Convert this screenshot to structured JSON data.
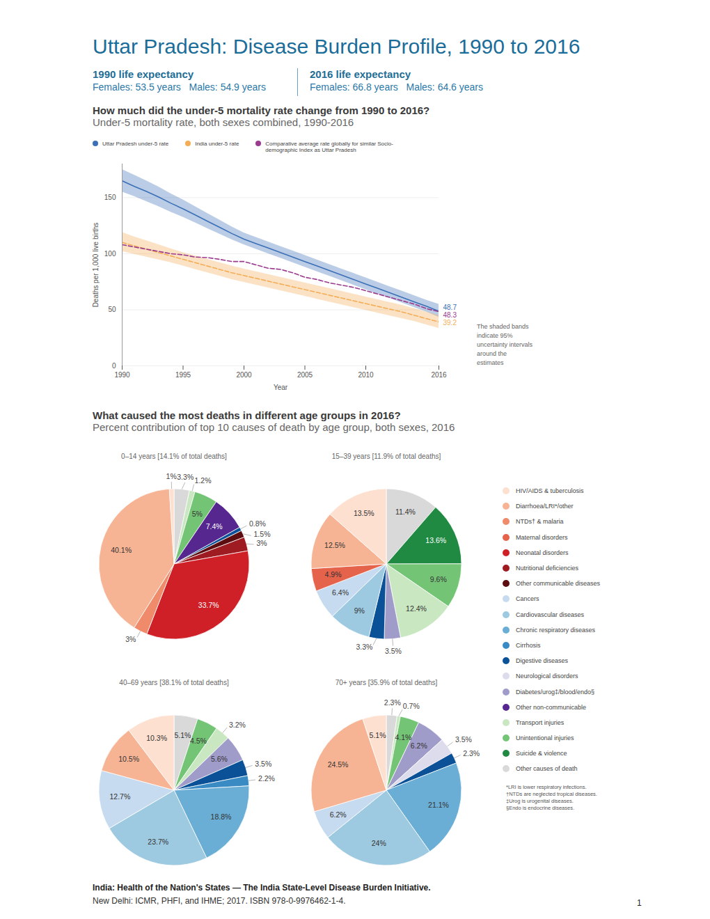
{
  "header": {
    "title": "Uttar Pradesh: Disease Burden Profile, 1990 to 2016",
    "life_expectancy": [
      {
        "heading": "1990 life expectancy",
        "text": "Females: 53.5 years   Males: 54.9 years"
      },
      {
        "heading": "2016 life expectancy",
        "text": "Females: 66.8 years   Males: 64.6 years"
      }
    ]
  },
  "chart_data": [
    {
      "type": "line",
      "title": "How much did the under-5 mortality rate change from 1990 to 2016?",
      "subtitle": "Under-5 mortality rate, both sexes combined, 1990-2016",
      "xlabel": "Year",
      "ylabel": "Deaths per 1,000 live births",
      "x": [
        1990,
        1991,
        1992,
        1993,
        1994,
        1995,
        1996,
        1997,
        1998,
        1999,
        2000,
        2001,
        2002,
        2003,
        2004,
        2005,
        2006,
        2007,
        2008,
        2009,
        2010,
        2011,
        2012,
        2013,
        2014,
        2015,
        2016
      ],
      "series": [
        {
          "name": "Uttar Pradesh under-5 rate",
          "color": "#3b6fb6",
          "line_style": "solid",
          "values": [
            165,
            160,
            155.5,
            150.5,
            145,
            140,
            134.5,
            129,
            123.5,
            118,
            113,
            109,
            105,
            101,
            97,
            93,
            89,
            85,
            81,
            77,
            73,
            69,
            65,
            61,
            57,
            53,
            48.7
          ],
          "lower": [
            155,
            151,
            146.5,
            142,
            137,
            132.5,
            127.5,
            122.5,
            117.5,
            112.5,
            108,
            104,
            100,
            96,
            92,
            88,
            84,
            80,
            76,
            72,
            68,
            64,
            60,
            56,
            52,
            48,
            43.5
          ],
          "upper": [
            175,
            170,
            165,
            159.5,
            153.5,
            148,
            142,
            136,
            130,
            124,
            118.5,
            114.5,
            110.5,
            106.5,
            102.5,
            98.5,
            94.5,
            90.5,
            86.5,
            82.5,
            78.5,
            74.5,
            70.5,
            66.5,
            62.5,
            58.5,
            55
          ]
        },
        {
          "name": "India under-5 rate",
          "color": "#f4ad55",
          "line_style": "dashed",
          "values": [
            110,
            107,
            104,
            101,
            98,
            95,
            92,
            89,
            86,
            83,
            80.5,
            78,
            75.5,
            73,
            70.5,
            68,
            65.5,
            63,
            60.5,
            58,
            55.5,
            53,
            50.5,
            48,
            45,
            42,
            39.2
          ],
          "lower": [
            102,
            99.5,
            97,
            94.5,
            92,
            89,
            86,
            83,
            80,
            77,
            74.5,
            72,
            69.5,
            67,
            64.5,
            62,
            59.5,
            57,
            54.5,
            52,
            49.5,
            47,
            44.5,
            42,
            39.5,
            36.5,
            33.5
          ],
          "upper": [
            119,
            115,
            111.5,
            108,
            104.5,
            101,
            98,
            95,
            92,
            89,
            86.5,
            84,
            81.5,
            79,
            76.5,
            74,
            71.5,
            69,
            66.5,
            64,
            61.5,
            59,
            56.5,
            54,
            51,
            48,
            45
          ]
        },
        {
          "name": "Comparative average rate globally for similar Socio-demographic Index as Uttar Pradesh",
          "color": "#9b3a8e",
          "line_style": "dashed",
          "values": [
            108,
            106,
            104,
            102,
            100,
            99,
            97,
            96.5,
            95,
            93,
            93,
            90,
            87,
            86,
            83,
            79,
            77,
            74,
            72,
            70,
            67,
            64,
            61,
            58,
            55,
            51,
            48.3
          ]
        }
      ],
      "xlim": [
        1990,
        2016
      ],
      "xticks": [
        1990,
        1995,
        2000,
        2005,
        2010,
        2016
      ],
      "ylim": [
        0,
        180
      ],
      "yticks": [
        0,
        50,
        100,
        150
      ],
      "grid": true,
      "annotations": [
        {
          "x": 2016,
          "y": 48.7,
          "text": "48.7",
          "color": "#3b6fb6"
        },
        {
          "x": 2016,
          "y": 48.3,
          "text": "48.3",
          "color": "#9b3a8e"
        },
        {
          "x": 2016,
          "y": 39.2,
          "text": "39.2",
          "color": "#f4ad55"
        }
      ],
      "note": "The shaded bands indicate 95% uncertainty intervals around the estimates"
    },
    {
      "type": "pie",
      "title": "0–14 years [14.1% of total deaths]",
      "categories": [
        "Other causes of death",
        "Transport injuries",
        "Unintentional injuries",
        "Other non-communicable",
        "Digestive diseases",
        "Other communicable diseases",
        "Nutritional deficiencies",
        "Neonatal disorders",
        "NTDs† & malaria",
        "Diarrhoea/LRI*/other",
        "HIV/AIDS & tuberculosis"
      ],
      "values": [
        3.3,
        1.2,
        5,
        7.4,
        0.8,
        1.5,
        3,
        33.7,
        3,
        40.1,
        1
      ],
      "value_labels": [
        "3.3%",
        "1.2%",
        "5%",
        "7.4%",
        "0.8%",
        "1.5%",
        "3%",
        "33.7%",
        "3%",
        "40.1%",
        "1%"
      ],
      "colors": [
        "#d9d9d9",
        "#c9e8c1",
        "#74c476",
        "#55278f",
        "#0b5198",
        "#5c0d10",
        "#9e1b22",
        "#cf2027",
        "#ef8a6a",
        "#f7b494",
        "#fde0d0"
      ],
      "data_labels": true
    },
    {
      "type": "pie",
      "title": "15–39 years [11.9% of total deaths]",
      "categories": [
        "Other causes of death",
        "Suicide & violence",
        "Unintentional injuries",
        "Transport injuries",
        "Diabetes/urog‡/blood/endo§",
        "Digestive diseases",
        "Cardiovascular diseases",
        "Cancers",
        "Maternal disorders",
        "Diarrhoea/LRI*/other",
        "HIV/AIDS & tuberculosis"
      ],
      "values": [
        11.4,
        13.6,
        9.6,
        12.4,
        3.5,
        3.3,
        9,
        6.4,
        4.9,
        12.5,
        13.5
      ],
      "value_labels": [
        "11.4%",
        "13.6%",
        "9.6%",
        "12.4%",
        "3.5%",
        "3.3%",
        "9%",
        "6.4%",
        "4.9%",
        "12.5%",
        "13.5%"
      ],
      "colors": [
        "#d9d9d9",
        "#208a43",
        "#74c476",
        "#c9e8c1",
        "#a09cc9",
        "#0b5198",
        "#9ecae1",
        "#c6dbef",
        "#e5624b",
        "#f7b494",
        "#fde0d0"
      ],
      "data_labels": true
    },
    {
      "type": "pie",
      "title": "40–69 years [38.1% of total deaths]",
      "categories": [
        "Other causes of death",
        "Unintentional injuries",
        "Transport injuries",
        "Diabetes/urog‡/blood/endo§",
        "Digestive diseases",
        "Cirrhosis",
        "Chronic respiratory diseases",
        "Cardiovascular diseases",
        "Cancers",
        "Diarrhoea/LRI*/other",
        "HIV/AIDS & tuberculosis"
      ],
      "values": [
        5.1,
        4.5,
        3.2,
        5.6,
        3.5,
        2.2,
        18.8,
        23.7,
        12.7,
        10.5,
        10.3
      ],
      "value_labels": [
        "5.1%",
        "4.5%",
        "3.2%",
        "5.6%",
        "3.5%",
        "2.2%",
        "18.8%",
        "23.7%",
        "12.7%",
        "10.5%",
        "10.3%"
      ],
      "colors": [
        "#d9d9d9",
        "#74c476",
        "#c9e8c1",
        "#a09cc9",
        "#0b5198",
        "#3a8ac4",
        "#6aaed6",
        "#9ecae1",
        "#c6dbef",
        "#f7b494",
        "#fde0d0"
      ],
      "data_labels": true
    },
    {
      "type": "pie",
      "title": "70+ years [35.9% of total deaths]",
      "categories": [
        "Other causes of death",
        "Transport injuries",
        "Unintentional injuries",
        "Diabetes/urog‡/blood/endo§",
        "Neurological disorders",
        "Digestive diseases",
        "Chronic respiratory diseases",
        "Cardiovascular diseases",
        "Cancers",
        "Diarrhoea/LRI*/other",
        "HIV/AIDS & tuberculosis"
      ],
      "values": [
        2.3,
        0.7,
        4.1,
        6.2,
        3.5,
        2.3,
        21.1,
        24,
        6.2,
        24.5,
        5.1
      ],
      "value_labels": [
        "2.3%",
        "0.7%",
        "4.1%",
        "6.2%",
        "3.5%",
        "2.3%",
        "21.1%",
        "24%",
        "6.2%",
        "24.5%",
        "5.1%"
      ],
      "colors": [
        "#d9d9d9",
        "#c9e8c1",
        "#74c476",
        "#a09cc9",
        "#dcdcec",
        "#0b5198",
        "#6aaed6",
        "#9ecae1",
        "#c6dbef",
        "#f7b494",
        "#fde0d0"
      ],
      "data_labels": true
    }
  ],
  "pie_section": {
    "title": "What caused the most deaths in different age groups in 2016?",
    "subtitle": "Percent contribution of top 10 causes of death by age group, both sexes, 2016"
  },
  "cause_legend": {
    "entries": [
      {
        "name": "HIV/AIDS & tuberculosis",
        "color": "#fde0d0"
      },
      {
        "name": "Diarrhoea/LRI*/other",
        "color": "#f7b494"
      },
      {
        "name": "NTDs† & malaria",
        "color": "#ef8a6a"
      },
      {
        "name": "Maternal disorders",
        "color": "#e5624b"
      },
      {
        "name": "Neonatal disorders",
        "color": "#cf2027"
      },
      {
        "name": "Nutritional deficiencies",
        "color": "#9e1b22"
      },
      {
        "name": "Other communicable diseases",
        "color": "#5c0d10"
      },
      {
        "name": "Cancers",
        "color": "#c6dbef"
      },
      {
        "name": "Cardiovascular diseases",
        "color": "#9ecae1"
      },
      {
        "name": "Chronic respiratory diseases",
        "color": "#6aaed6"
      },
      {
        "name": "Cirrhosis",
        "color": "#3a8ac4"
      },
      {
        "name": "Digestive diseases",
        "color": "#0b5198"
      },
      {
        "name": "Neurological disorders",
        "color": "#dcdcec"
      },
      {
        "name": "Diabetes/urog‡/blood/endo§",
        "color": "#a09cc9"
      },
      {
        "name": "Other non-communicable",
        "color": "#55278f"
      },
      {
        "name": "Transport injuries",
        "color": "#c9e8c1"
      },
      {
        "name": "Unintentional injuries",
        "color": "#74c476"
      },
      {
        "name": "Suicide & violence",
        "color": "#208a43"
      },
      {
        "name": "Other causes of death",
        "color": "#d9d9d9"
      }
    ],
    "footnotes": [
      "*LRI is lower respiratory infections.",
      "†NTDs are neglected tropical diseases.",
      "‡Urog is urogenital diseases.",
      "§Endo is endocrine diseases."
    ]
  },
  "footer": {
    "source": "India: Health of the Nation's States — The India State-Level Disease Burden Initiative.",
    "publisher": "New Delhi: ICMR, PHFI, and IHME; 2017. ISBN 978-0-9976462-1-4.",
    "page": "1"
  }
}
